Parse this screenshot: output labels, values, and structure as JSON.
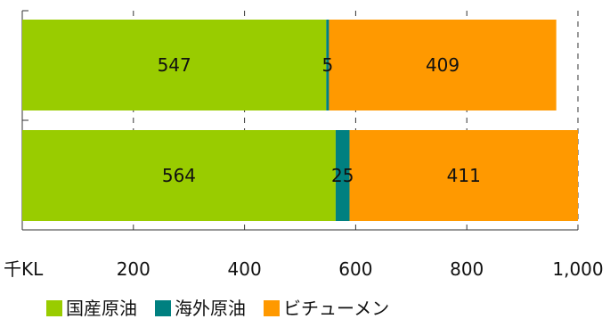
{
  "chart_data": {
    "type": "bar",
    "orientation": "horizontal",
    "stacked": true,
    "categories": [
      "",
      ""
    ],
    "series": [
      {
        "name": "国産原油",
        "values": [
          547,
          564
        ],
        "color": "#99cc00"
      },
      {
        "name": "海外原油",
        "values": [
          5,
          25
        ],
        "color": "#008080"
      },
      {
        "name": "ビチューメン",
        "values": [
          409,
          411
        ],
        "color": "#ff9900"
      }
    ],
    "xticks": [
      200,
      400,
      600,
      800,
      1000
    ],
    "xtick_labels": [
      "200",
      "400",
      "600",
      "800",
      "1,000"
    ],
    "xlim": [
      0,
      1000
    ],
    "unit_label": "千KL",
    "grid": "vertical-dashed",
    "legend_position": "bottom"
  }
}
